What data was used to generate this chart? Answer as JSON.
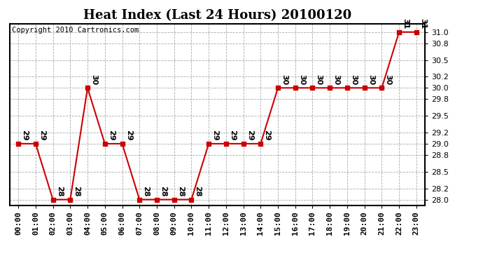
{
  "title": "Heat Index (Last 24 Hours) 20100120",
  "copyright": "Copyright 2010 Cartronics.com",
  "x_labels": [
    "00:00",
    "01:00",
    "02:00",
    "03:00",
    "04:00",
    "05:00",
    "06:00",
    "07:00",
    "08:00",
    "09:00",
    "10:00",
    "11:00",
    "12:00",
    "13:00",
    "14:00",
    "15:00",
    "16:00",
    "17:00",
    "18:00",
    "19:00",
    "20:00",
    "21:00",
    "22:00",
    "23:00"
  ],
  "y_values": [
    29,
    29,
    28,
    28,
    30,
    29,
    29,
    28,
    28,
    28,
    28,
    29,
    29,
    29,
    29,
    30,
    30,
    30,
    30,
    30,
    30,
    30,
    31,
    31
  ],
  "ylim": [
    27.9,
    31.15
  ],
  "yticks": [
    28.0,
    28.2,
    28.5,
    28.8,
    29.0,
    29.2,
    29.5,
    29.8,
    30.0,
    30.2,
    30.5,
    30.8,
    31.0
  ],
  "line_color": "#cc0000",
  "marker_color": "#cc0000",
  "bg_color": "#ffffff",
  "grid_color": "#aaaaaa",
  "title_fontsize": 13,
  "annotation_fontsize": 8,
  "copyright_fontsize": 7.5,
  "tick_fontsize": 8,
  "ytick_fontsize": 8
}
